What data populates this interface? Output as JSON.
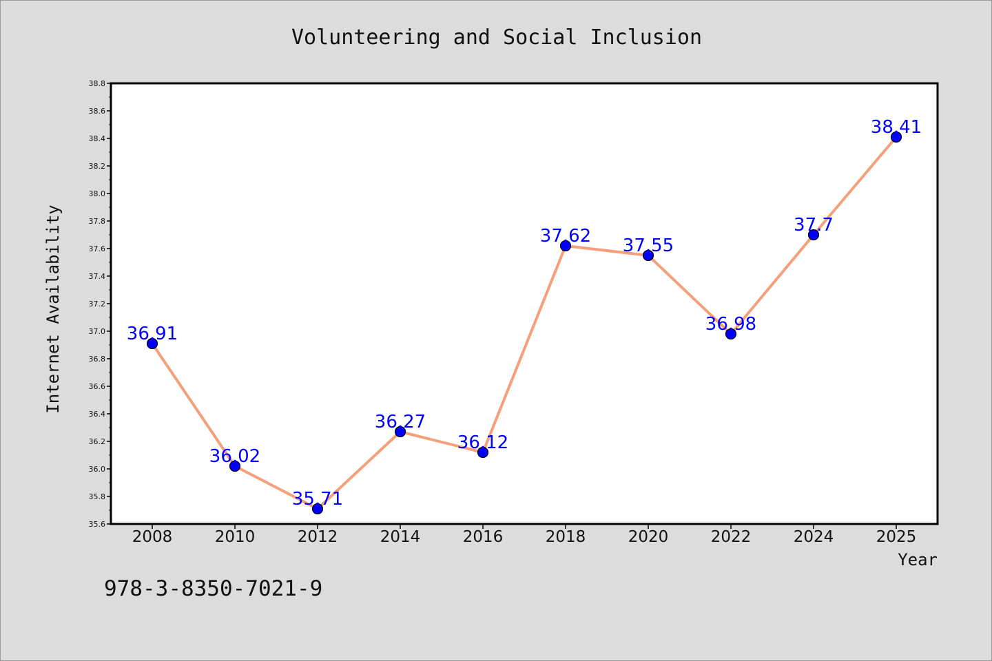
{
  "chart_data": {
    "type": "line",
    "title": "Volunteering and Social Inclusion",
    "xlabel": "Year",
    "ylabel": "Internet Availability",
    "categories": [
      "2008",
      "2010",
      "2012",
      "2014",
      "2016",
      "2018",
      "2020",
      "2022",
      "2024",
      "2025"
    ],
    "values": [
      36.91,
      36.02,
      35.71,
      36.27,
      36.12,
      37.62,
      37.55,
      36.98,
      37.7,
      38.41
    ],
    "data_labels": [
      "36.91",
      "36.02",
      "35.71",
      "36.27",
      "36.12",
      "37.62",
      "37.55",
      "36.98",
      "37.7",
      "38.41"
    ],
    "ylim": [
      35.6,
      38.8
    ],
    "yticks": [
      "35.6",
      "35.8",
      "36.0",
      "36.2",
      "36.4",
      "36.6",
      "36.8",
      "37.0",
      "37.2",
      "37.4",
      "37.6",
      "37.8",
      "38.0",
      "38.2",
      "38.4",
      "38.6",
      "38.8"
    ],
    "grid": false,
    "legend": "none",
    "line_color": "#f4a07a",
    "marker_color": "#0000ff",
    "label_color": "#0000ff"
  },
  "footer_text": "978-3-8350-7021-9"
}
